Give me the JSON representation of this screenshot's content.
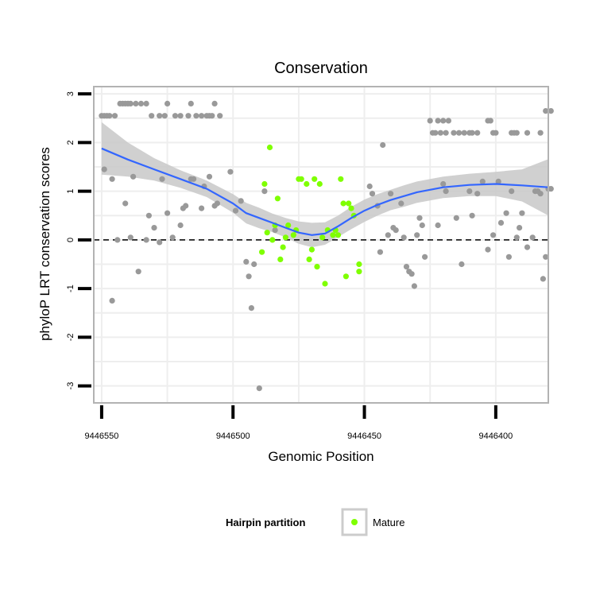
{
  "chart_data": {
    "type": "scatter",
    "title": "Conservation",
    "xlabel": "Genomic Position",
    "ylabel": "phyloP LRT conservation scores",
    "x_reversed": true,
    "xlim": [
      9446380,
      9446553
    ],
    "ylim": [
      -3.35,
      3.15
    ],
    "x_ticks": [
      9446550,
      9446500,
      9446450,
      9446400
    ],
    "x_tick_labels": [
      "9446550",
      "9446500",
      "9446450",
      "9446400"
    ],
    "y_ticks": [
      3,
      2,
      1,
      0,
      -1,
      -2,
      -3
    ],
    "y_tick_labels": [
      "3",
      "2",
      "1",
      "0",
      "-1",
      "-2",
      "-3"
    ],
    "reference_line": {
      "y": 0,
      "style": "dashed"
    },
    "legend": {
      "title": "Hairpin partition",
      "entries": [
        {
          "label": "Mature",
          "color": "#7fff00"
        }
      ],
      "position": "bottom"
    },
    "colors": {
      "other": "#999999",
      "mature": "#7fff00",
      "smooth": "#3366ff",
      "band": "#c8c8c8",
      "grid": "#eeeeee",
      "border": "#b3b3b3"
    },
    "series": [
      {
        "name": "Other",
        "color": "#999999",
        "points": [
          [
            9446550,
            2.55
          ],
          [
            9446549,
            2.55
          ],
          [
            9446548,
            2.55
          ],
          [
            9446547,
            2.55
          ],
          [
            9446545,
            2.55
          ],
          [
            9446543,
            2.8
          ],
          [
            9446542,
            2.8
          ],
          [
            9446541,
            2.8
          ],
          [
            9446540,
            2.8
          ],
          [
            9446539,
            2.8
          ],
          [
            9446537,
            2.8
          ],
          [
            9446535,
            2.8
          ],
          [
            9446533,
            2.8
          ],
          [
            9446531,
            2.55
          ],
          [
            9446528,
            2.55
          ],
          [
            9446526,
            2.55
          ],
          [
            9446525,
            2.8
          ],
          [
            9446522,
            2.55
          ],
          [
            9446520,
            2.55
          ],
          [
            9446517,
            2.55
          ],
          [
            9446516,
            2.8
          ],
          [
            9446514,
            2.55
          ],
          [
            9446512,
            2.55
          ],
          [
            9446510,
            2.55
          ],
          [
            9446509,
            2.55
          ],
          [
            9446508,
            2.55
          ],
          [
            9446507,
            2.8
          ],
          [
            9446505,
            2.55
          ],
          [
            9446549,
            1.45
          ],
          [
            9446546,
            1.25
          ],
          [
            9446546,
            -1.25
          ],
          [
            9446544,
            0.0
          ],
          [
            9446541,
            0.75
          ],
          [
            9446539,
            0.05
          ],
          [
            9446538,
            1.3
          ],
          [
            9446536,
            -0.65
          ],
          [
            9446533,
            0.0
          ],
          [
            9446532,
            0.5
          ],
          [
            9446530,
            0.25
          ],
          [
            9446528,
            -0.05
          ],
          [
            9446527,
            1.25
          ],
          [
            9446525,
            0.55
          ],
          [
            9446523,
            0.05
          ],
          [
            9446520,
            0.3
          ],
          [
            9446519,
            0.65
          ],
          [
            9446518,
            0.7
          ],
          [
            9446516,
            1.25
          ],
          [
            9446515,
            1.25
          ],
          [
            9446512,
            0.65
          ],
          [
            9446511,
            1.1
          ],
          [
            9446509,
            1.3
          ],
          [
            9446507,
            0.7
          ],
          [
            9446506,
            0.75
          ],
          [
            9446501,
            1.4
          ],
          [
            9446499,
            0.6
          ],
          [
            9446497,
            0.8
          ],
          [
            9446495,
            -0.45
          ],
          [
            9446494,
            -0.75
          ],
          [
            9446493,
            -1.4
          ],
          [
            9446492,
            -0.5
          ],
          [
            9446490,
            -3.05
          ],
          [
            9446488,
            1.0
          ],
          [
            9446484,
            0.2
          ],
          [
            9446448,
            1.1
          ],
          [
            9446447,
            0.95
          ],
          [
            9446445,
            0.7
          ],
          [
            9446444,
            -0.25
          ],
          [
            9446443,
            1.95
          ],
          [
            9446441,
            0.1
          ],
          [
            9446440,
            0.95
          ],
          [
            9446439,
            0.25
          ],
          [
            9446438,
            0.2
          ],
          [
            9446436,
            0.75
          ],
          [
            9446435,
            0.05
          ],
          [
            9446434,
            -0.55
          ],
          [
            9446433,
            -0.65
          ],
          [
            9446432,
            -0.7
          ],
          [
            9446431,
            -0.95
          ],
          [
            9446430,
            0.1
          ],
          [
            9446429,
            0.45
          ],
          [
            9446428,
            0.3
          ],
          [
            9446427,
            -0.35
          ],
          [
            9446425,
            2.45
          ],
          [
            9446424,
            2.2
          ],
          [
            9446423,
            2.2
          ],
          [
            9446422,
            2.45
          ],
          [
            9446421,
            2.2
          ],
          [
            9446420,
            2.45
          ],
          [
            9446419,
            2.2
          ],
          [
            9446418,
            2.45
          ],
          [
            9446416,
            2.2
          ],
          [
            9446414,
            2.2
          ],
          [
            9446412,
            2.2
          ],
          [
            9446410,
            2.2
          ],
          [
            9446409,
            2.2
          ],
          [
            9446407,
            2.2
          ],
          [
            9446403,
            2.45
          ],
          [
            9446402,
            2.45
          ],
          [
            9446401,
            2.2
          ],
          [
            9446400,
            2.2
          ],
          [
            9446394,
            2.2
          ],
          [
            9446393,
            2.2
          ],
          [
            9446392,
            2.2
          ],
          [
            9446388,
            2.2
          ],
          [
            9446383,
            2.2
          ],
          [
            9446381,
            2.65
          ],
          [
            9446379,
            2.65
          ],
          [
            9446422,
            0.3
          ],
          [
            9446420,
            1.15
          ],
          [
            9446419,
            1.0
          ],
          [
            9446415,
            0.45
          ],
          [
            9446413,
            -0.5
          ],
          [
            9446410,
            1.0
          ],
          [
            9446409,
            0.5
          ],
          [
            9446407,
            0.95
          ],
          [
            9446405,
            1.2
          ],
          [
            9446403,
            -0.2
          ],
          [
            9446401,
            0.1
          ],
          [
            9446399,
            1.2
          ],
          [
            9446398,
            0.35
          ],
          [
            9446396,
            0.55
          ],
          [
            9446395,
            -0.35
          ],
          [
            9446394,
            1.0
          ],
          [
            9446392,
            0.05
          ],
          [
            9446391,
            0.25
          ],
          [
            9446390,
            0.55
          ],
          [
            9446388,
            -0.15
          ],
          [
            9446386,
            0.05
          ],
          [
            9446385,
            1.0
          ],
          [
            9446384,
            1.0
          ],
          [
            9446383,
            0.95
          ],
          [
            9446382,
            -0.8
          ],
          [
            9446381,
            -0.35
          ],
          [
            9446380,
            1.05
          ],
          [
            9446379,
            1.05
          ]
        ]
      },
      {
        "name": "Mature",
        "color": "#7fff00",
        "points": [
          [
            9446489,
            -0.25
          ],
          [
            9446488,
            1.15
          ],
          [
            9446487,
            0.15
          ],
          [
            9446486,
            1.9
          ],
          [
            9446485,
            0.0
          ],
          [
            9446484,
            0.3
          ],
          [
            9446483,
            0.85
          ],
          [
            9446482,
            -0.4
          ],
          [
            9446481,
            -0.15
          ],
          [
            9446480,
            0.05
          ],
          [
            9446479,
            0.3
          ],
          [
            9446477,
            0.1
          ],
          [
            9446476,
            0.2
          ],
          [
            9446475,
            1.25
          ],
          [
            9446474,
            1.25
          ],
          [
            9446472,
            1.15
          ],
          [
            9446471,
            -0.4
          ],
          [
            9446470,
            -0.2
          ],
          [
            9446469,
            1.25
          ],
          [
            9446468,
            -0.55
          ],
          [
            9446467,
            1.15
          ],
          [
            9446466,
            0.05
          ],
          [
            9446465,
            -0.9
          ],
          [
            9446464,
            0.2
          ],
          [
            9446462,
            0.1
          ],
          [
            9446461,
            0.2
          ],
          [
            9446460,
            0.1
          ],
          [
            9446459,
            1.25
          ],
          [
            9446458,
            0.75
          ],
          [
            9446457,
            -0.75
          ],
          [
            9446456,
            0.75
          ],
          [
            9446455,
            0.65
          ],
          [
            9446454,
            0.5
          ],
          [
            9446452,
            -0.65
          ],
          [
            9446452,
            -0.5
          ]
        ]
      }
    ],
    "smooth": {
      "x": [
        9446550,
        9446540,
        9446530,
        9446520,
        9446510,
        9446500,
        9446495,
        9446490,
        9446485,
        9446480,
        9446475,
        9446470,
        9446465,
        9446460,
        9446455,
        9446450,
        9446445,
        9446440,
        9446435,
        9446430,
        9446420,
        9446410,
        9446400,
        9446390,
        9446380
      ],
      "y": [
        1.88,
        1.65,
        1.45,
        1.25,
        1.05,
        0.75,
        0.55,
        0.45,
        0.35,
        0.25,
        0.15,
        0.1,
        0.13,
        0.28,
        0.45,
        0.6,
        0.72,
        0.82,
        0.9,
        0.98,
        1.08,
        1.13,
        1.15,
        1.12,
        1.08
      ],
      "upper": [
        2.42,
        2.0,
        1.68,
        1.43,
        1.22,
        0.94,
        0.76,
        0.66,
        0.54,
        0.45,
        0.38,
        0.35,
        0.36,
        0.5,
        0.68,
        0.83,
        0.94,
        1.03,
        1.12,
        1.2,
        1.3,
        1.36,
        1.4,
        1.45,
        1.66
      ],
      "lower": [
        1.34,
        1.3,
        1.22,
        1.07,
        0.88,
        0.56,
        0.34,
        0.24,
        0.16,
        0.05,
        -0.08,
        -0.15,
        -0.1,
        0.06,
        0.22,
        0.37,
        0.5,
        0.61,
        0.68,
        0.76,
        0.86,
        0.9,
        0.9,
        0.79,
        0.5
      ]
    }
  }
}
